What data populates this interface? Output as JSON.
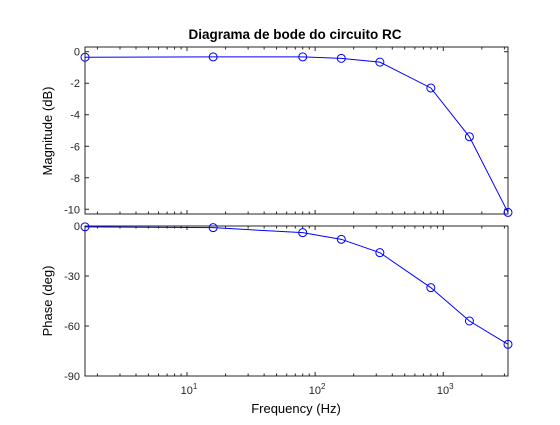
{
  "colors": {
    "series": "#0000ff",
    "axes": "#262626",
    "background": "#ffffff"
  },
  "chart_data": [
    {
      "type": "line",
      "title": "Diagrama de bode do circuito RC",
      "xlabel": "",
      "ylabel": "Magnitude (dB)",
      "xscale": "log",
      "xlim": [
        1.6,
        3200
      ],
      "ylim": [
        -10.3,
        0.3
      ],
      "grid": false,
      "yticks": [
        0,
        -2,
        -4,
        -6,
        -8,
        -10
      ],
      "ytick_labels": [
        "0",
        "-2",
        "-4",
        "-6",
        "-8",
        "-10"
      ],
      "marker": "circle",
      "x": [
        1.6,
        16,
        80,
        160,
        320,
        800,
        1600,
        3200
      ],
      "y": [
        -0.35,
        -0.33,
        -0.33,
        -0.42,
        -0.66,
        -2.3,
        -5.4,
        -10.2
      ]
    },
    {
      "type": "line",
      "title": "",
      "xlabel": "Frequency  (Hz)",
      "ylabel": "Phase (deg)",
      "xscale": "log",
      "xlim": [
        1.6,
        3200
      ],
      "ylim": [
        -90,
        0
      ],
      "grid": false,
      "xticks": [
        10,
        100,
        1000
      ],
      "xtick_labels": [
        {
          "base": "10",
          "exp": "1"
        },
        {
          "base": "10",
          "exp": "2"
        },
        {
          "base": "10",
          "exp": "3"
        }
      ],
      "yticks": [
        0,
        -30,
        -60,
        -90
      ],
      "ytick_labels": [
        "0",
        "-30",
        "-60",
        "-90"
      ],
      "marker": "circle",
      "x": [
        1.6,
        16,
        80,
        160,
        320,
        800,
        1600,
        3200
      ],
      "y": [
        -0.5,
        -1,
        -4,
        -8,
        -16,
        -37,
        -57,
        -71
      ]
    }
  ]
}
